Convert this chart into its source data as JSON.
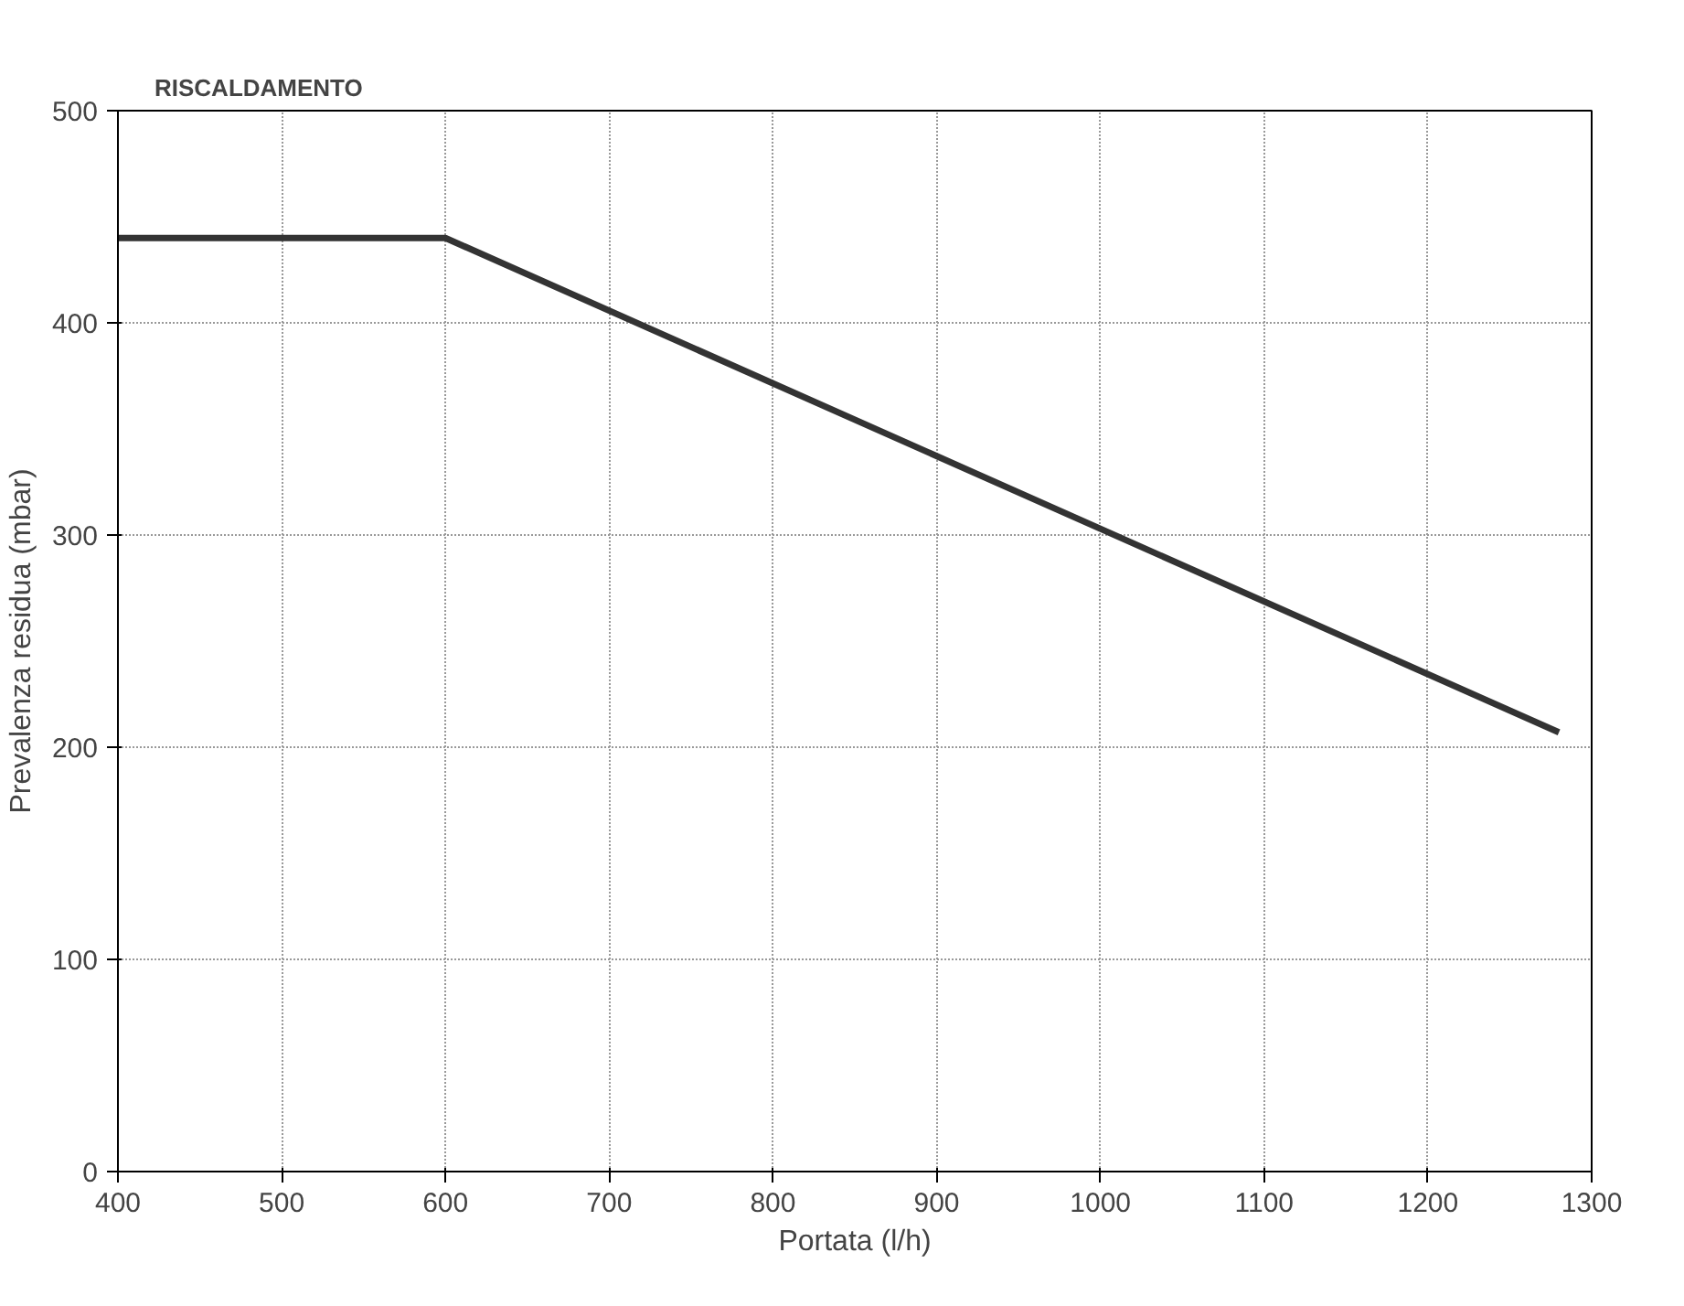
{
  "chart_data": {
    "type": "line",
    "title": "RISCALDAMENTO",
    "xlabel": "Portata (l/h)",
    "ylabel": "Prevalenza residua (mbar)",
    "x": [
      400,
      600,
      1280
    ],
    "series": [
      {
        "color": "#333333",
        "values": [
          440,
          440,
          207
        ]
      }
    ],
    "xlim": [
      400,
      1300
    ],
    "xticks": [
      400,
      500,
      600,
      700,
      800,
      900,
      1000,
      1100,
      1200,
      1300
    ],
    "ylim": [
      0,
      500
    ],
    "yticks": [
      0,
      100,
      200,
      300,
      400,
      500
    ],
    "grid": true,
    "marker": "none",
    "line_style": "solid"
  }
}
